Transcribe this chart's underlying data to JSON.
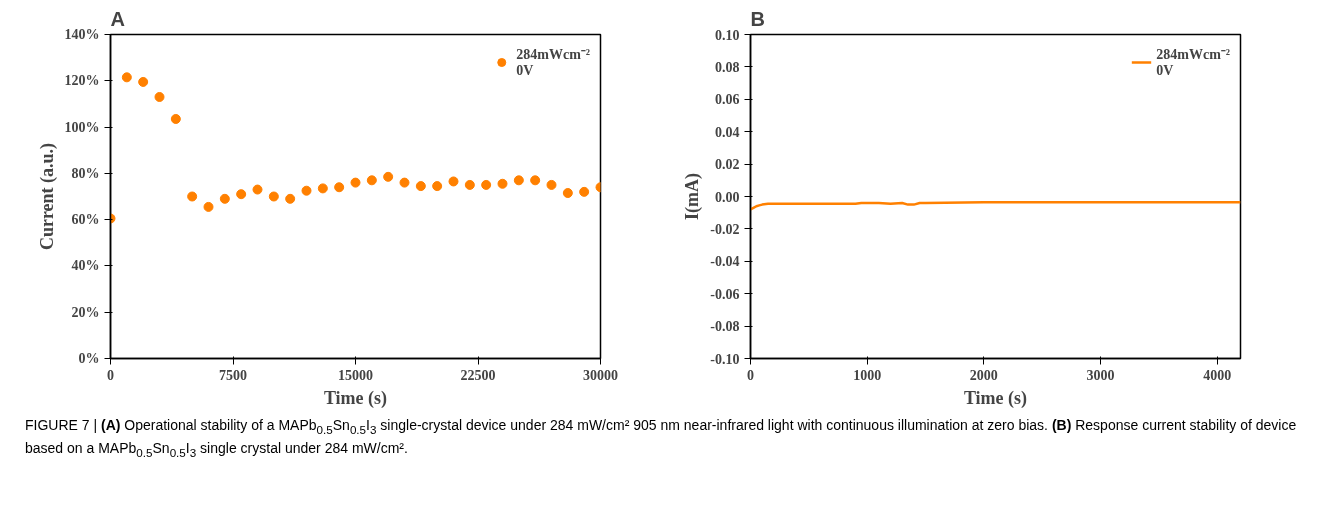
{
  "chart_data": [
    {
      "type": "scatter",
      "title": "A",
      "xlabel": "Time (s)",
      "ylabel": "Current (a.u.)",
      "legend": "top right",
      "marker": "circle",
      "grid": false,
      "x": [
        0,
        1000,
        2000,
        3000,
        4000,
        5000,
        6000,
        7000,
        8000,
        9000,
        10000,
        11000,
        12000,
        13000,
        14000,
        15000,
        16000,
        17000,
        18000,
        19000,
        20000,
        21000,
        22000,
        23000,
        24000,
        25000,
        26000,
        27000,
        28000,
        29000,
        30000
      ],
      "series": [
        {
          "name": "284mWcm⁻²\n0V",
          "color": "#ff8000",
          "values": [
            60.5,
            121.5,
            119.5,
            113,
            103.5,
            70,
            65.5,
            69,
            71,
            73,
            70,
            69,
            72.5,
            73.5,
            74,
            76,
            77,
            78.5,
            76,
            74.5,
            74.5,
            76.5,
            75,
            75,
            75.5,
            77,
            77,
            75,
            71.5,
            72,
            74
          ]
        }
      ],
      "xlim": [
        0,
        30000
      ],
      "xticks": [
        0,
        7500,
        15000,
        22500,
        30000
      ],
      "ylim": [
        0,
        140
      ],
      "yticks": [
        {
          "value": 0,
          "label": "0%"
        },
        {
          "value": 20,
          "label": "20%"
        },
        {
          "value": 40,
          "label": "40%"
        },
        {
          "value": 60,
          "label": "60%"
        },
        {
          "value": 80,
          "label": "80%"
        },
        {
          "value": 100,
          "label": "100%"
        },
        {
          "value": 120,
          "label": "120%"
        },
        {
          "value": 140,
          "label": "140%"
        }
      ],
      "annotations": [
        "FIGURE 7 | (A) Operational stability of a MAPb$_{0.5}$Sn$_{0.5}$I$_{3}$ single-crystal device under 284 mW/cm² 905 nm near-infrared light with continuous illumination at zero bias. (B) Response current stability of device based on a MAPb$_{0.5}$Sn$_{0.5}$I$_{3}$ single crystal under 284 mW/cm²."
      ]
    },
    {
      "type": "line",
      "title": "B",
      "xlabel": "Time (s)",
      "ylabel": "I(mA)",
      "legend": "top right",
      "line_style": "solid",
      "grid": false,
      "x": [
        0,
        25,
        50,
        75,
        100,
        150,
        300,
        600,
        900,
        950,
        1000,
        1100,
        1200,
        1300,
        1350,
        1400,
        1450,
        1500,
        2000,
        3000,
        4200
      ],
      "series": [
        {
          "name": "284mWcm⁻²\n0V",
          "color": "#ff8000",
          "values": [
            -0.008,
            -0.007,
            -0.006,
            -0.0055,
            -0.005,
            -0.0045,
            -0.0045,
            -0.0045,
            -0.0045,
            -0.004,
            -0.004,
            -0.004,
            -0.0045,
            -0.004,
            -0.005,
            -0.005,
            -0.004,
            -0.004,
            -0.0035,
            -0.0035,
            -0.0035
          ]
        }
      ],
      "xlim": [
        0,
        4200
      ],
      "xticks": [
        0,
        1000,
        2000,
        3000,
        4000
      ],
      "ylim": [
        -0.1,
        0.1
      ],
      "yticks": [
        {
          "value": -0.1,
          "label": "-0.10"
        },
        {
          "value": -0.08,
          "label": "-0.08"
        },
        {
          "value": -0.06,
          "label": "-0.06"
        },
        {
          "value": -0.04,
          "label": "-0.04"
        },
        {
          "value": -0.02,
          "label": "-0.02"
        },
        {
          "value": 0,
          "label": "0.00"
        },
        {
          "value": 0.02,
          "label": "0.02"
        },
        {
          "value": 0.04,
          "label": "0.04"
        },
        {
          "value": 0.06,
          "label": "0.06"
        },
        {
          "value": 0.08,
          "label": "0.08"
        },
        {
          "value": 0.1,
          "label": "0.10"
        }
      ]
    }
  ]
}
